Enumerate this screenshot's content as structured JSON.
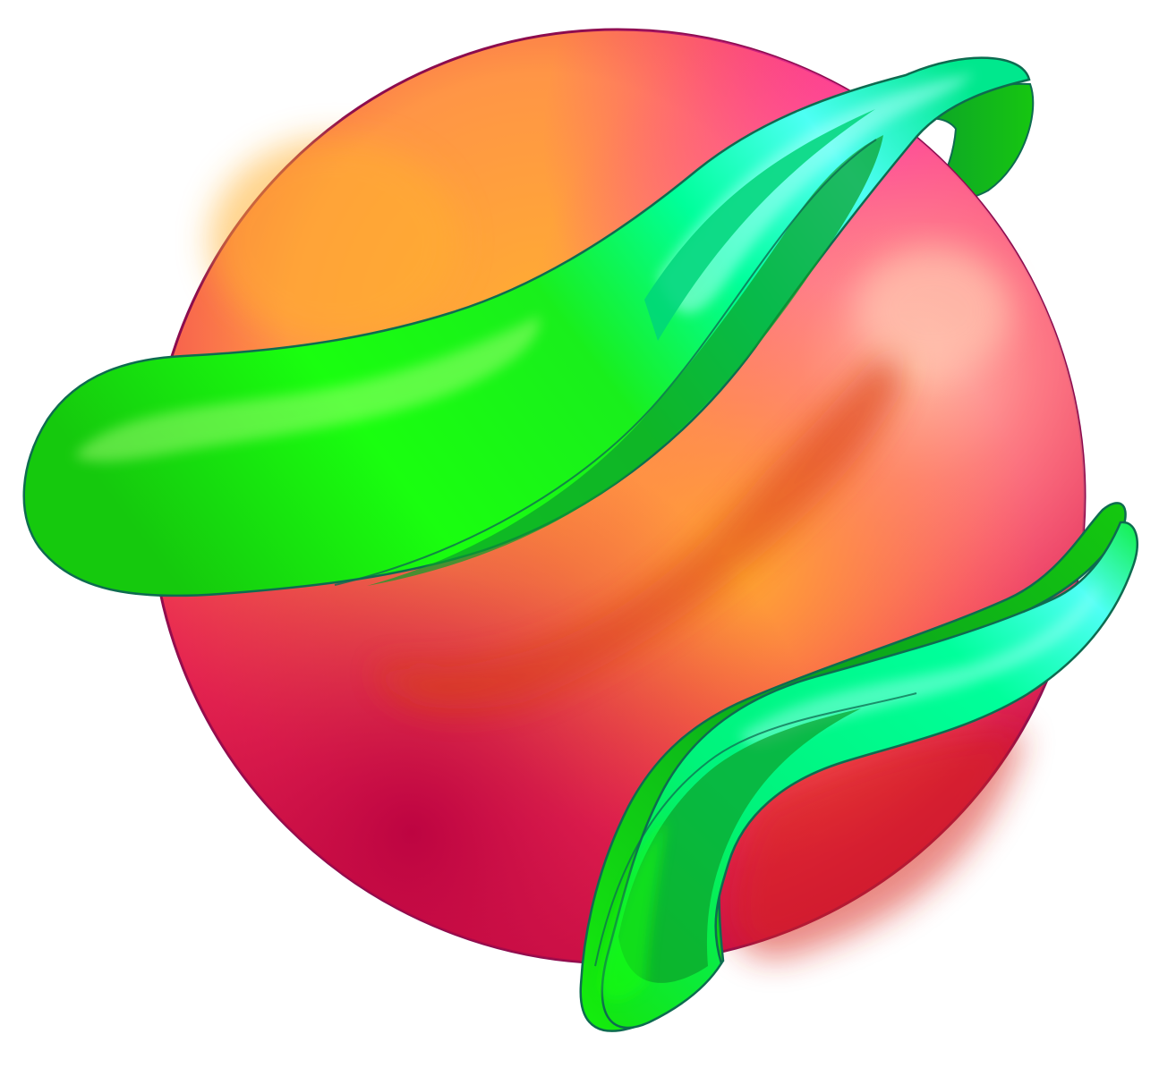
{
  "colors": {
    "sphere_magenta": "#ff2fa8",
    "sphere_pink": "#ff5f86",
    "sphere_orange": "#ffad32",
    "sphere_red": "#d81947",
    "sphere_deep_red": "#b8003f",
    "sphere_highlight": "#ffc1ad",
    "sphere_outline": "#8c0c4e",
    "ribbon_green": "#19ff0f",
    "ribbon_mid_green": "#15c90d",
    "ribbon_dark_green": "#0b9f2b",
    "ribbon_aqua": "#00ff9b",
    "ribbon_cyan": "#4dfff4",
    "ribbon_outline": "#0e6b50",
    "background": "#ffffff"
  },
  "illustration": {
    "subject": "ribbon-wrapped-sphere",
    "icon": "sphere-with-ribbons-icon"
  }
}
